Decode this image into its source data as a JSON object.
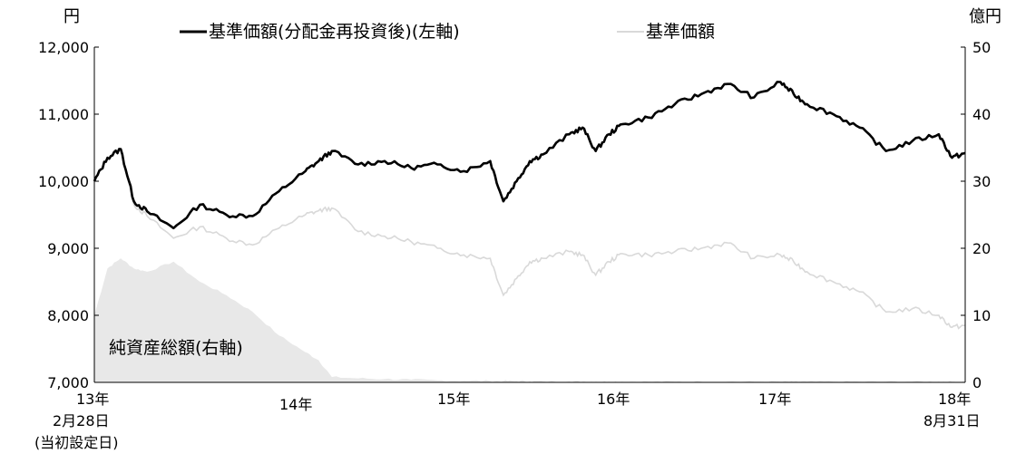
{
  "chart_data": {
    "type": "line",
    "left_unit": "円",
    "right_unit": "億円",
    "left_axis": {
      "ylim": [
        7000,
        12000
      ],
      "ticks": [
        "7,000",
        "8,000",
        "9,000",
        "10,000",
        "11,000",
        "12,000"
      ]
    },
    "right_axis": {
      "ylim": [
        0,
        50
      ],
      "ticks": [
        "0",
        "10",
        "20",
        "30",
        "40",
        "50"
      ]
    },
    "x_labels": {
      "start_year": "13年",
      "start_date": "2月28日",
      "start_note": "(当初設定日)",
      "years": [
        "14年",
        "15年",
        "16年",
        "17年"
      ],
      "end_year": "18年",
      "end_date": "8月31日"
    },
    "legend": {
      "reinvested": "基準価額(分配金再投資後)(左軸)",
      "nav": "基準価額"
    },
    "area_label": "純資産総額(右軸)",
    "colors": {
      "reinvested": "#000000",
      "nav": "#d9d9d9",
      "assets": "#e8e8e8"
    },
    "x_months": [
      0,
      1,
      2,
      3,
      4,
      6,
      8,
      10,
      12,
      14,
      16,
      17,
      18,
      20,
      22,
      24,
      26,
      28,
      30,
      31,
      32,
      33,
      34,
      36,
      37,
      38,
      39,
      40,
      42,
      44,
      46,
      48,
      50,
      52,
      53,
      54,
      56,
      58,
      60,
      62,
      64,
      65,
      66
    ],
    "series": [
      {
        "name": "基準価額(分配金再投資後)(左軸)",
        "axis": "left",
        "values": [
          10000,
          10350,
          10480,
          9700,
          9550,
          9300,
          9650,
          9500,
          9480,
          9850,
          10150,
          10300,
          10450,
          10250,
          10300,
          10200,
          10250,
          10150,
          10300,
          9700,
          10000,
          10300,
          10400,
          10700,
          10800,
          10450,
          10700,
          10850,
          10950,
          11150,
          11300,
          11450,
          11250,
          11480,
          11300,
          11150,
          11000,
          10800,
          10450,
          10600,
          10700,
          10350,
          10420
        ]
      },
      {
        "name": "基準価額",
        "axis": "left",
        "values": [
          10000,
          10350,
          10470,
          9650,
          9480,
          9150,
          9320,
          9150,
          9050,
          9300,
          9500,
          9560,
          9600,
          9250,
          9180,
          9100,
          9000,
          8900,
          8850,
          8300,
          8550,
          8800,
          8850,
          8950,
          8900,
          8600,
          8800,
          8920,
          8900,
          8950,
          9000,
          9080,
          8850,
          8900,
          8800,
          8650,
          8500,
          8350,
          8050,
          8100,
          8000,
          7820,
          7850
        ]
      },
      {
        "name": "純資産総額(右軸)",
        "axis": "right",
        "values": [
          10,
          17,
          18.5,
          17,
          16.5,
          18,
          15,
          13,
          10.5,
          7,
          4.5,
          3.3,
          0.8,
          0.6,
          0.5,
          0.4,
          0.3,
          0.25,
          0.2,
          0.2,
          0.2,
          0.15,
          0.15,
          0.15,
          0.12,
          0.1,
          0.1,
          0.1,
          0.1,
          0.1,
          0.1,
          0.1,
          0.1,
          0.1,
          0.1,
          0.1,
          0.1,
          0.1,
          0.1,
          0.1,
          0.1,
          0.1,
          0.1
        ]
      }
    ]
  }
}
